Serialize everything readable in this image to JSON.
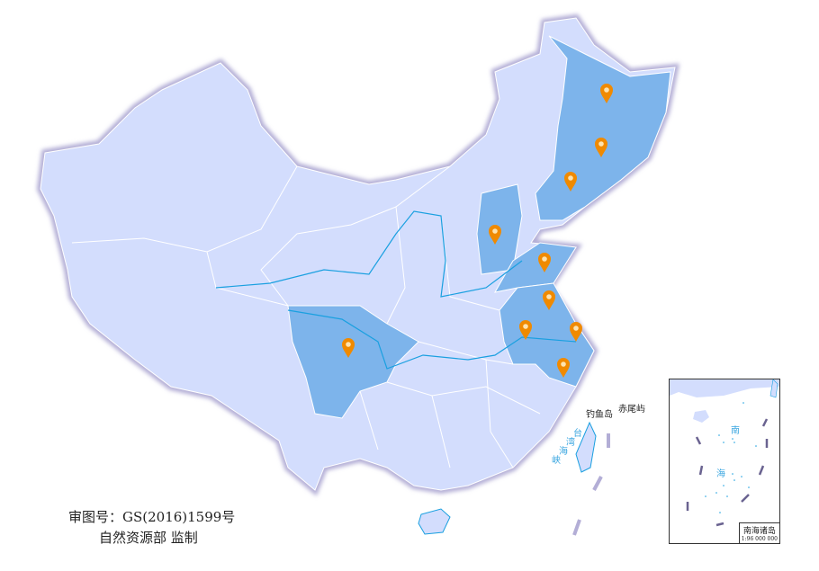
{
  "map": {
    "colors": {
      "base": "#d3ddfd",
      "highlight": "#7db4eb",
      "border_glow": "#b3aed6",
      "pin": "#f08a00",
      "river": "#1aa0e0"
    },
    "highlighted_regions": [
      "Heilongjiang",
      "Jilin",
      "Liaoning",
      "Shanxi",
      "Shandong",
      "Jiangsu",
      "Anhui",
      "Shanghai",
      "Zhejiang",
      "Sichuan"
    ],
    "pin_icon": "map-pin-icon",
    "labels": {
      "diaoyu": "钓鱼岛",
      "chiwei": "赤尾屿",
      "strait": [
        "台",
        "湾",
        "海",
        "峡"
      ]
    },
    "approval": {
      "line1": "审图号：GS(2016)1599号",
      "line2": "自然资源部 监制"
    },
    "inset": {
      "title": "南海诸岛",
      "scale": "1:96 000 000",
      "sea": [
        "南",
        "海"
      ]
    }
  }
}
